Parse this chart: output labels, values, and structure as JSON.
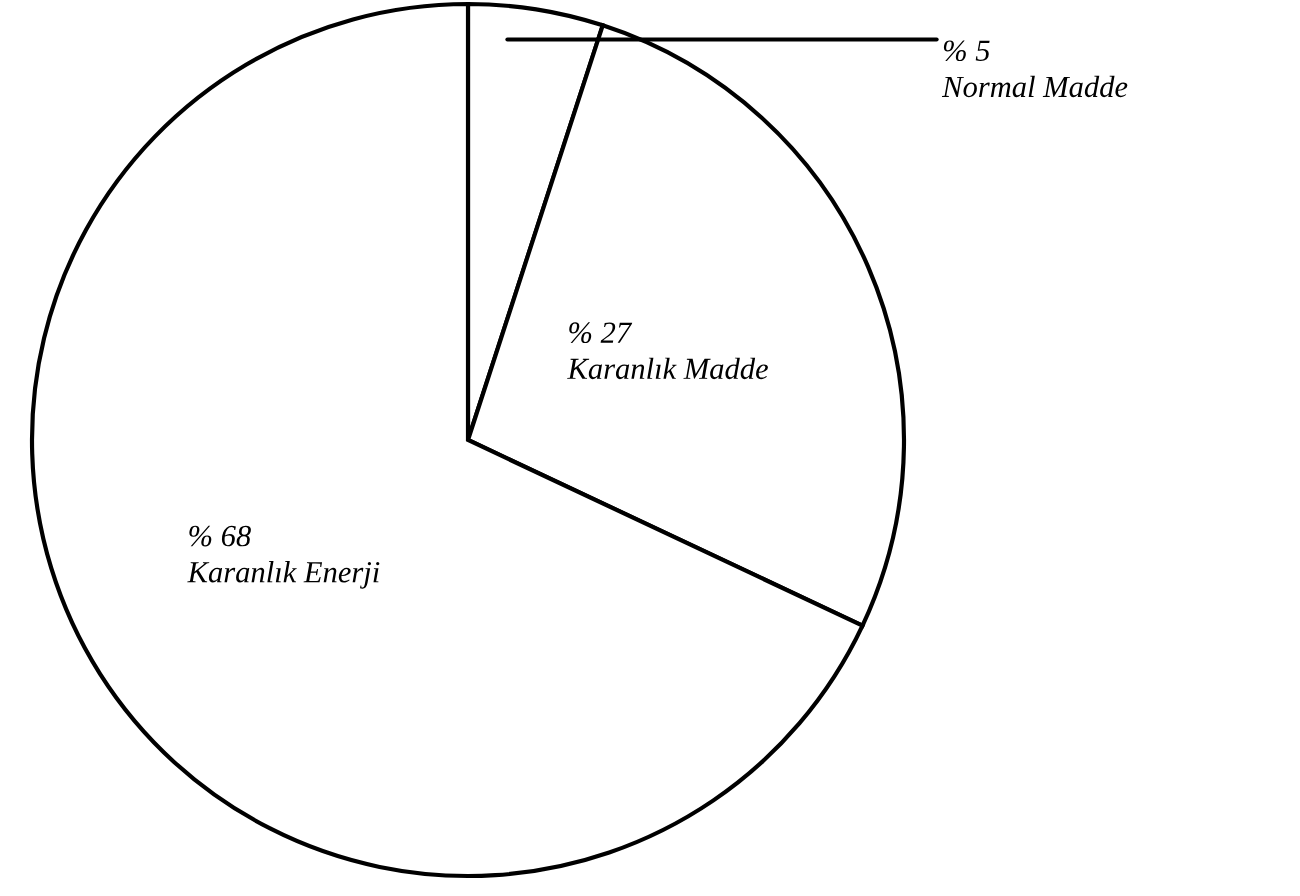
{
  "chart_data": {
    "type": "pie",
    "categories": [
      "Normal Madde",
      "Karanlık Madde",
      "Karanlık Enerji"
    ],
    "values": [
      5,
      27,
      68
    ],
    "colors": [
      "#ffffff",
      "#ffffff",
      "#ffffff"
    ],
    "value_labels": [
      "% 5",
      "% 27",
      "% 68"
    ]
  }
}
